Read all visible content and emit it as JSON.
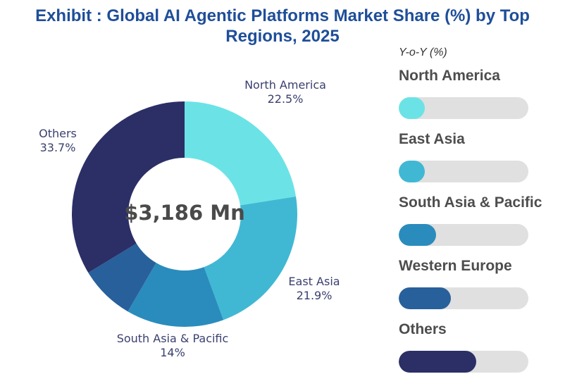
{
  "title_line1": "Exhibit : Global AI Agentic Platforms Market Share (%) by Top",
  "title_line2": "Regions, 2025",
  "center_value": "$3,186 Mn",
  "yoy_header": "Y-o-Y (%)",
  "chart_data": [
    {
      "type": "pie",
      "title": "Global AI Agentic Platforms Market Share (%) by Top Regions, 2025",
      "total_label": "$3,186 Mn",
      "slices": [
        {
          "name": "North America",
          "value": 22.5,
          "label": "22.5%",
          "color": "#6be3e6"
        },
        {
          "name": "East Asia",
          "value": 21.9,
          "label": "21.9%",
          "color": "#40b8d4"
        },
        {
          "name": "South Asia & Pacific",
          "value": 14,
          "label": "14%",
          "color": "#2a8cbd"
        },
        {
          "name": "Western Europe",
          "value": 7.9,
          "label": "",
          "color": "#28609b"
        },
        {
          "name": "Others",
          "value": 33.7,
          "label": "33.7%",
          "color": "#2b2f66"
        }
      ]
    },
    {
      "type": "bar",
      "title": "Y-o-Y (%)",
      "categories": [
        "North America",
        "East Asia",
        "South Asia & Pacific",
        "Western Europe",
        "Others"
      ],
      "fill_fraction": [
        0.2,
        0.2,
        0.29,
        0.4,
        0.6
      ],
      "colors": [
        "#6be3e6",
        "#40b8d4",
        "#2a8cbd",
        "#28609b",
        "#2b2f66"
      ],
      "track_color": "#e0e0e0"
    }
  ]
}
